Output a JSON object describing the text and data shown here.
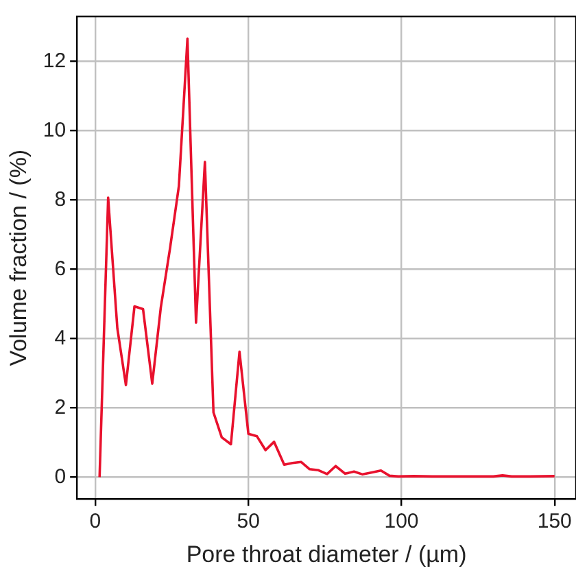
{
  "chart_data": {
    "type": "line",
    "xlabel": "Pore throat diameter / (µm)",
    "ylabel": "Volume fraction / (%)",
    "x": [
      1.4,
      4.2,
      7.2,
      10,
      12.8,
      15.6,
      18.6,
      21.4,
      24.4,
      27.3,
      30.1,
      32.9,
      35.8,
      38.6,
      41.3,
      44.3,
      47.1,
      50,
      52.8,
      55.6,
      58.4,
      61.7,
      64.4,
      67.2,
      70,
      72.9,
      75.7,
      78.5,
      81.6,
      84.5,
      87.3,
      90.1,
      93.3,
      96.1,
      99,
      104,
      110,
      118,
      125,
      130,
      133,
      136,
      142,
      150
    ],
    "series": [
      {
        "color": "#e8112d",
        "values": [
          0,
          8.07,
          4.3,
          2.66,
          4.93,
          4.85,
          2.7,
          4.9,
          6.6,
          8.4,
          12.66,
          4.46,
          9.1,
          1.87,
          1.15,
          0.95,
          3.62,
          1.25,
          1.18,
          0.78,
          1.02,
          0.36,
          0.41,
          0.44,
          0.23,
          0.2,
          0.09,
          0.32,
          0.1,
          0.16,
          0.08,
          0.13,
          0.19,
          0.04,
          0.02,
          0.03,
          0.02,
          0.02,
          0.02,
          0.02,
          0.05,
          0.02,
          0.02,
          0.03
        ]
      }
    ],
    "xlim": [
      -6,
      157
    ],
    "ylim": [
      -0.63,
      13.3
    ],
    "xticks": [
      0,
      50,
      100,
      150
    ],
    "yticks": [
      0,
      2,
      4,
      6,
      8,
      10,
      12
    ],
    "grid": true,
    "legend": false,
    "marker": "none",
    "line_style": "solid"
  }
}
